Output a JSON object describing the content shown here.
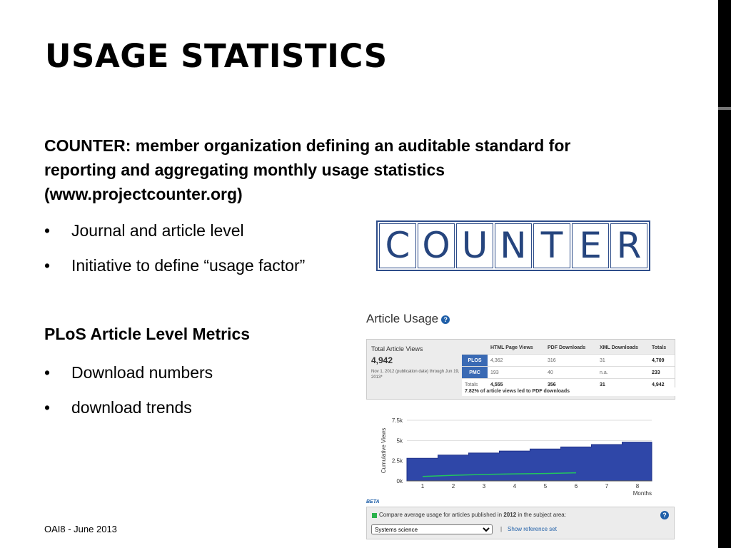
{
  "slide": {
    "title": "USAGE STATISTICS",
    "intro": "COUNTER: member organization defining an auditable standard for reporting and aggregating monthly usage statistics (www.projectcounter.org)",
    "bullets1": [
      "Journal and article level",
      "Initiative to define “usage factor”"
    ],
    "section2": "PLoS Article Level Metrics",
    "bullets2": [
      "Download numbers",
      "download trends"
    ],
    "footer": "OAI8 - June 2013",
    "bullet_glyph": "•"
  },
  "logo": {
    "letters": [
      "C",
      "O",
      "U",
      "N",
      "T",
      "E",
      "R"
    ],
    "color": "#26457e"
  },
  "article_usage": {
    "title": "Article Usage",
    "help": "?",
    "total_label": "Total Article Views",
    "total_value": "4,942",
    "range": "Nov 1, 2012 (publication date) through Jun 19, 2013*",
    "headers": [
      "",
      "HTML Page Views",
      "PDF Downloads",
      "XML Downloads",
      "Totals"
    ],
    "rows": [
      {
        "src": "PLOS",
        "html": "4,362",
        "pdf": "316",
        "xml": "31",
        "total": "4,709"
      },
      {
        "src": "PMC",
        "html": "193",
        "pdf": "40",
        "xml": "n.a.",
        "total": "233"
      },
      {
        "src": "Totals",
        "html": "4,555",
        "pdf": "356",
        "xml": "31",
        "total": "4,942"
      }
    ],
    "note": "7.82% of article views led to PDF downloads"
  },
  "chart_data": {
    "type": "area",
    "ylabel": "Cumulative Views",
    "xlabel": "Months",
    "x_ticks": [
      "1",
      "2",
      "3",
      "4",
      "5",
      "6",
      "7",
      "8"
    ],
    "y_ticks": [
      "0k",
      "2.5k",
      "5k",
      "7.5k"
    ],
    "ylim": [
      0,
      7500
    ],
    "series": [
      {
        "values": [
          2800,
          3200,
          3450,
          3700,
          3950,
          4200,
          4500,
          4800,
          4942
        ],
        "color": "#2f47a8"
      },
      {
        "x": [
          1,
          2,
          3,
          4,
          5,
          6
        ],
        "values": [
          550,
          700,
          800,
          870,
          920,
          1000
        ],
        "color": "#22c55e"
      }
    ]
  },
  "compare": {
    "beta": "BETA",
    "text_pre": "Compare average usage for articles published in",
    "year": "2012",
    "text_post": "in the subject area:",
    "select": "Systems science",
    "sep": "|",
    "link": "Show reference set"
  }
}
